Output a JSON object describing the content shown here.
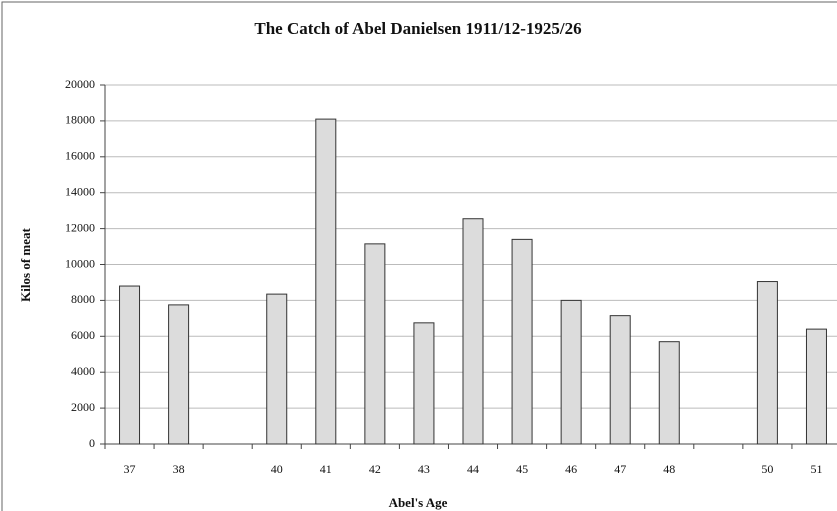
{
  "chart_data": {
    "type": "bar",
    "title": "The Catch of Abel Danielsen 1911/12-1925/26",
    "x_label": "Abel's Age",
    "y_label": "Kilos of meat",
    "categories": [
      "37",
      "38",
      null,
      "40",
      "41",
      "42",
      "43",
      "44",
      "45",
      "46",
      "47",
      "48",
      null,
      "50",
      "51"
    ],
    "values": [
      8800,
      7750,
      null,
      8350,
      18100,
      11150,
      6750,
      12550,
      11400,
      8000,
      7150,
      5700,
      null,
      9050,
      6400
    ],
    "color": "#dcdcdc",
    "ylim": [
      0,
      20000
    ],
    "yticks": [
      0,
      2000,
      4000,
      6000,
      8000,
      10000,
      12000,
      14000,
      16000,
      18000,
      20000
    ],
    "grid": true
  }
}
